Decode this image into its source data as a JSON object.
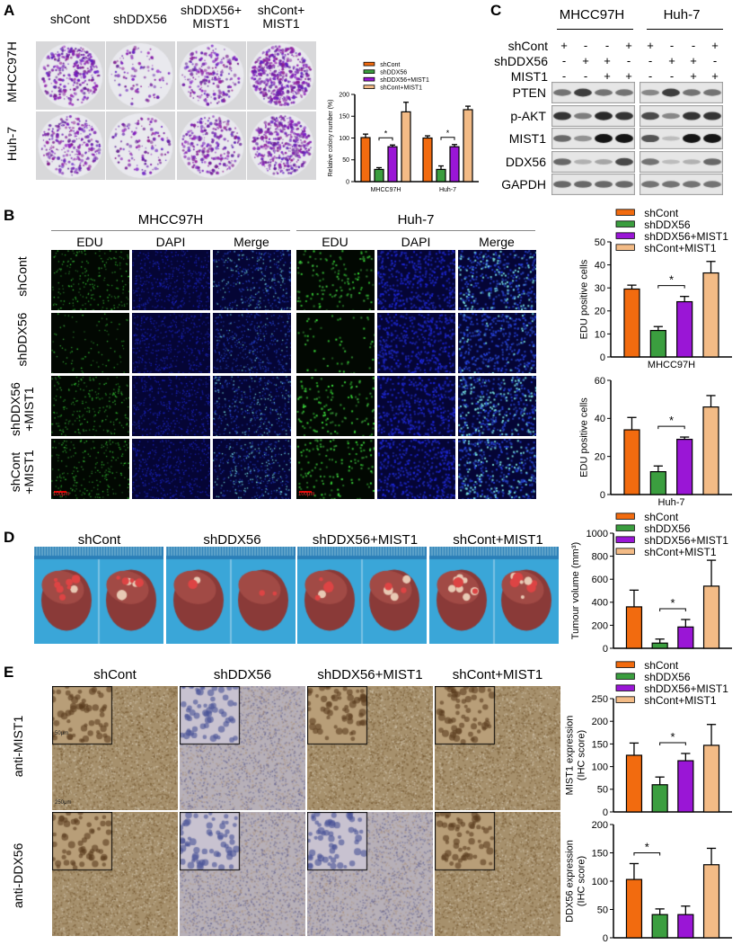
{
  "colors": {
    "shCont": "#f26b0f",
    "shDDX56": "#3b9e3f",
    "shDDX56_MIST1": "#9a16d6",
    "shCont_MIST1": "#f3bb86"
  },
  "legend": [
    "shCont",
    "shDDX56",
    "shDDX56+MIST1",
    "shCont+MIST1"
  ],
  "panelA": {
    "label": "A",
    "columns": [
      "shCont",
      "shDDX56",
      "shDDX56+\nMIST1",
      "shCont+\nMIST1"
    ],
    "rows": [
      "MHCC97H",
      "Huh-7"
    ]
  },
  "panelB": {
    "label": "B",
    "cell_lines": [
      "MHCC97H",
      "Huh-7"
    ],
    "channels": [
      "EDU",
      "DAPI",
      "Merge"
    ],
    "rows": [
      "shCont",
      "shDDX56",
      "shDDX56\n+MIST1",
      "shCont\n+MIST1"
    ],
    "scale_bar": "100μm"
  },
  "panelC": {
    "label": "C",
    "cell_lines": [
      "MHCC97H",
      "Huh-7"
    ],
    "conditions": [
      {
        "name": "shCont",
        "signs": [
          "+",
          "-",
          "-",
          "+",
          "+",
          "-",
          "-",
          "+"
        ]
      },
      {
        "name": "shDDX56",
        "signs": [
          "-",
          "+",
          "+",
          "-",
          "-",
          "+",
          "+",
          "-"
        ]
      },
      {
        "name": "MIST1",
        "signs": [
          "-",
          "-",
          "+",
          "+",
          "-",
          "-",
          "+",
          "+"
        ]
      }
    ],
    "blots": [
      {
        "name": "PTEN",
        "intensity": [
          0.55,
          0.8,
          0.55,
          0.55,
          0.45,
          0.8,
          0.55,
          0.55
        ]
      },
      {
        "name": "p-AKT",
        "intensity": [
          0.85,
          0.5,
          0.9,
          0.85,
          0.75,
          0.45,
          0.85,
          0.85
        ]
      },
      {
        "name": "MIST1",
        "intensity": [
          0.6,
          0.4,
          1,
          1,
          0.7,
          0.2,
          1,
          1
        ]
      },
      {
        "name": "DDX56",
        "intensity": [
          0.6,
          0.25,
          0.3,
          0.75,
          0.55,
          0.2,
          0.25,
          0.6
        ]
      },
      {
        "name": "GAPDH",
        "intensity": [
          0.6,
          0.6,
          0.6,
          0.6,
          0.55,
          0.55,
          0.55,
          0.55
        ]
      }
    ]
  },
  "panelD": {
    "label": "D",
    "groups": [
      "shCont",
      "shDDX56",
      "shDDX56+MIST1",
      "shCont+MIST1"
    ]
  },
  "panelE": {
    "label": "E",
    "groups": [
      "shCont",
      "shDDX56",
      "shDDX56+MIST1",
      "shCont+MIST1"
    ],
    "rows": [
      "anti-MIST1",
      "anti-DDX56"
    ],
    "scale_bar_inset": "50μm",
    "scale_bar_main": "250μm"
  },
  "chart_data": [
    {
      "id": "A",
      "type": "bar",
      "ylabel": "Relative colony number (%)",
      "ylim": [
        0,
        200
      ],
      "yticks": [
        0,
        50,
        100,
        150,
        200
      ],
      "categories": [
        "MHCC97H",
        "Huh-7"
      ],
      "series": [
        {
          "name": "shCont",
          "values": [
            101,
            100
          ],
          "errors": [
            8,
            5
          ]
        },
        {
          "name": "shDDX56",
          "values": [
            28,
            28
          ],
          "errors": [
            4,
            8
          ]
        },
        {
          "name": "shDDX56+MIST1",
          "values": [
            80,
            80
          ],
          "errors": [
            4,
            5
          ]
        },
        {
          "name": "shCont+MIST1",
          "values": [
            160,
            165
          ],
          "errors": [
            22,
            8
          ]
        }
      ],
      "significance": [
        {
          "group": 0,
          "between": [
            1,
            2
          ],
          "label": "*"
        },
        {
          "group": 1,
          "between": [
            1,
            2
          ],
          "label": "*"
        }
      ],
      "legend": "top"
    },
    {
      "id": "B1",
      "type": "bar",
      "ylabel": "EDU positive cells",
      "xlabel": "MHCC97H",
      "ylim": [
        0,
        50
      ],
      "yticks": [
        0,
        10,
        20,
        30,
        40,
        50
      ],
      "categories": [
        ""
      ],
      "series": [
        {
          "name": "shCont",
          "values": [
            29.5
          ],
          "errors": [
            1.7
          ]
        },
        {
          "name": "shDDX56",
          "values": [
            11.5
          ],
          "errors": [
            1.7
          ]
        },
        {
          "name": "shDDX56+MIST1",
          "values": [
            24
          ],
          "errors": [
            2.3
          ]
        },
        {
          "name": "shCont+MIST1",
          "values": [
            36.5
          ],
          "errors": [
            5
          ]
        }
      ],
      "significance": [
        {
          "group": 0,
          "between": [
            1,
            2
          ],
          "label": "*"
        }
      ],
      "legend": "top"
    },
    {
      "id": "B2",
      "type": "bar",
      "ylabel": "EDU positive cells",
      "xlabel": "Huh-7",
      "ylim": [
        0,
        60
      ],
      "yticks": [
        0,
        20,
        40,
        60
      ],
      "categories": [
        ""
      ],
      "series": [
        {
          "name": "shCont",
          "values": [
            34
          ],
          "errors": [
            6.5
          ]
        },
        {
          "name": "shDDX56",
          "values": [
            12
          ],
          "errors": [
            3
          ]
        },
        {
          "name": "shDDX56+MIST1",
          "values": [
            29
          ],
          "errors": [
            1.2
          ]
        },
        {
          "name": "shCont+MIST1",
          "values": [
            46
          ],
          "errors": [
            6
          ]
        }
      ],
      "significance": [
        {
          "group": 0,
          "between": [
            1,
            2
          ],
          "label": "*"
        }
      ],
      "legend": "none"
    },
    {
      "id": "D",
      "type": "bar",
      "ylabel": "Tumour volume (mm³)",
      "ylim": [
        0,
        1000
      ],
      "yticks": [
        0,
        200,
        400,
        600,
        800,
        1000
      ],
      "categories": [
        ""
      ],
      "series": [
        {
          "name": "shCont",
          "values": [
            360
          ],
          "errors": [
            145
          ]
        },
        {
          "name": "shDDX56",
          "values": [
            45
          ],
          "errors": [
            35
          ]
        },
        {
          "name": "shDDX56+MIST1",
          "values": [
            185
          ],
          "errors": [
            65
          ]
        },
        {
          "name": "shCont+MIST1",
          "values": [
            540
          ],
          "errors": [
            225
          ]
        }
      ],
      "significance": [
        {
          "group": 0,
          "between": [
            1,
            2
          ],
          "label": "*"
        }
      ],
      "legend": "top"
    },
    {
      "id": "E1",
      "type": "bar",
      "ylabel": "MIST1 expression\n(IHC score)",
      "ylim": [
        0,
        250
      ],
      "yticks": [
        0,
        50,
        100,
        150,
        200,
        250
      ],
      "categories": [
        ""
      ],
      "series": [
        {
          "name": "shCont",
          "values": [
            125
          ],
          "errors": [
            27
          ]
        },
        {
          "name": "shDDX56",
          "values": [
            60
          ],
          "errors": [
            17
          ]
        },
        {
          "name": "shDDX56+MIST1",
          "values": [
            113
          ],
          "errors": [
            16
          ]
        },
        {
          "name": "shCont+MIST1",
          "values": [
            147
          ],
          "errors": [
            46
          ]
        }
      ],
      "significance": [
        {
          "group": 0,
          "between": [
            1,
            2
          ],
          "label": "*"
        }
      ],
      "legend": "top"
    },
    {
      "id": "E2",
      "type": "bar",
      "ylabel": "DDX56 expression\n(IHC score)",
      "ylim": [
        0,
        200
      ],
      "yticks": [
        0,
        50,
        100,
        150,
        200
      ],
      "categories": [
        ""
      ],
      "series": [
        {
          "name": "shCont",
          "values": [
            103
          ],
          "errors": [
            28
          ]
        },
        {
          "name": "shDDX56",
          "values": [
            41
          ],
          "errors": [
            10
          ]
        },
        {
          "name": "shDDX56+MIST1",
          "values": [
            41
          ],
          "errors": [
            15
          ]
        },
        {
          "name": "shCont+MIST1",
          "values": [
            129
          ],
          "errors": [
            29
          ]
        }
      ],
      "significance": [
        {
          "group": 0,
          "between": [
            0,
            1
          ],
          "label": "*"
        }
      ],
      "legend": "none"
    }
  ]
}
